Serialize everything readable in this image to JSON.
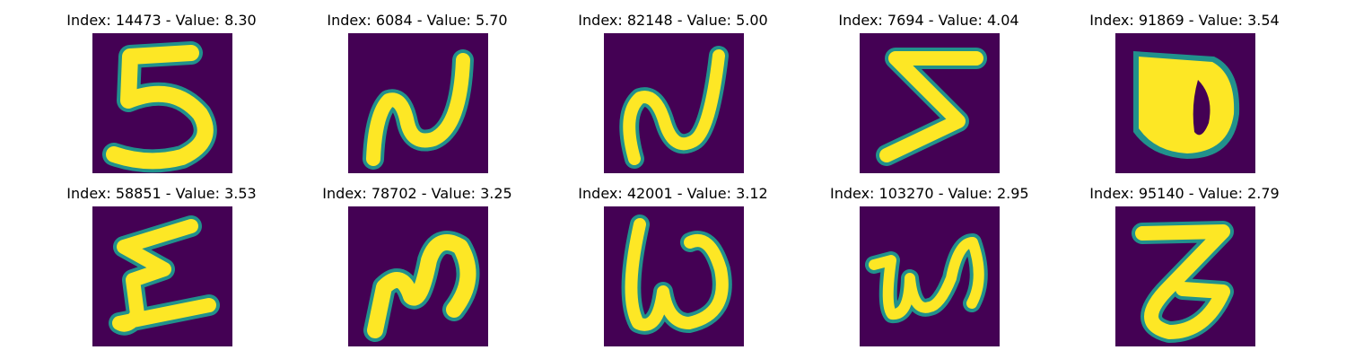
{
  "figure": {
    "colormap": "viridis",
    "background_color": "#440154",
    "stroke_color": "#fde725",
    "edge_color": "#21918c",
    "panels": [
      {
        "title": "Index: 14473 - Value: 8.30",
        "glyph": "5"
      },
      {
        "title": "Index: 6084 - Value: 5.70",
        "glyph": "N"
      },
      {
        "title": "Index: 82148 - Value: 5.00",
        "glyph": "N"
      },
      {
        "title": "Index: 7694 - Value: 4.04",
        "glyph": "Σ"
      },
      {
        "title": "Index: 91869 - Value: 3.54",
        "glyph": "D"
      },
      {
        "title": "Index: 58851 - Value: 3.53",
        "glyph": "Σ"
      },
      {
        "title": "Index: 78702 - Value: 3.25",
        "glyph": "N"
      },
      {
        "title": "Index: 42001 - Value: 3.12",
        "glyph": "W"
      },
      {
        "title": "Index: 103270 - Value: 2.95",
        "glyph": "W"
      },
      {
        "title": "Index: 95140 - Value: 2.79",
        "glyph": "Z"
      }
    ]
  }
}
